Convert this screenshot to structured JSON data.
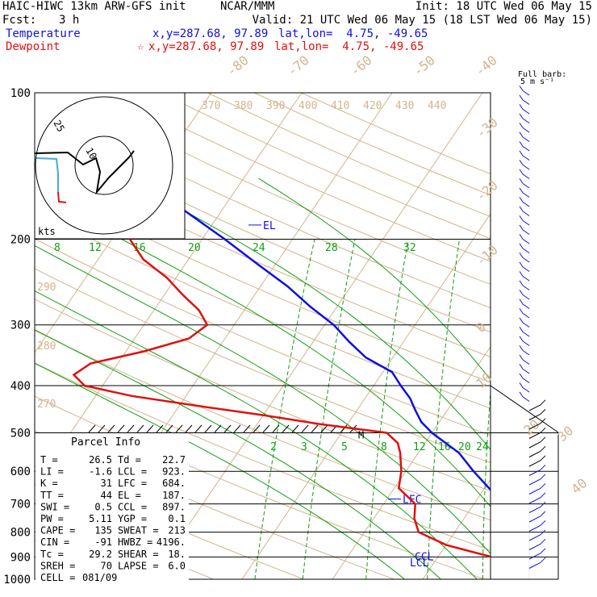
{
  "header": {
    "model": "HAIC-HIWC 13km ARW-GFS init",
    "org": "NCAR/MMM",
    "init": "Init: 18 UTC Wed 06 May 15",
    "fcst_label": "Fcst:",
    "fcst_value": "3 h",
    "valid": "Valid: 21 UTC Wed 06 May 15 (18 LST Wed 06 May 15)",
    "temp_label": "Temperature",
    "temp_xy": "x,y=287.68, 97.89",
    "temp_latlon": "lat,lon=  4.75, -49.65",
    "dew_label": "Dewpoint",
    "dew_star": "☆",
    "dew_xy": "x,y=287.68, 97.89",
    "dew_latlon": "lat,lon=  4.75, -49.65"
  },
  "barb_title": [
    "Full barb:",
    "5 m s⁻¹"
  ],
  "colors": {
    "temperature": "#1010e0",
    "dewpoint": "#e01010",
    "mixing_ratio": "#10a010",
    "dry_adiabat": "#d2b48c",
    "isotherm": "#d2b48c"
  },
  "chart_data": {
    "type": "line",
    "y_axis": "pressure (hPa), log scale",
    "ylim": [
      1000,
      100
    ],
    "xlim": [
      -40,
      40
    ],
    "pressure_ticks": [
      100,
      200,
      300,
      400,
      500,
      600,
      700,
      800,
      900,
      1000
    ],
    "isotherm_labels": [
      40,
      30,
      20,
      10,
      0,
      -10,
      -20,
      -30,
      -40,
      -50,
      -60,
      -70,
      -80
    ],
    "theta_labels_top": [
      370,
      380,
      390,
      400,
      410,
      420,
      430,
      440
    ],
    "theta_labels_left": [
      290,
      280,
      270
    ],
    "mixing_ratio_labels_upper": [
      8,
      12,
      16,
      20,
      24,
      28,
      32
    ],
    "mixing_ratio_labels_lower": [
      2,
      3,
      5,
      8,
      12,
      16,
      20,
      24
    ],
    "series": [
      {
        "name": "Temperature",
        "points": [
          [
            1000,
            26.5
          ],
          [
            975,
            23.5
          ],
          [
            950,
            21
          ],
          [
            925,
            20
          ],
          [
            900,
            20.5
          ],
          [
            875,
            21
          ],
          [
            850,
            20.5
          ],
          [
            800,
            18.5
          ],
          [
            750,
            16
          ],
          [
            700,
            13.5
          ],
          [
            650,
            10.5
          ],
          [
            600,
            7.5
          ],
          [
            550,
            4.5
          ],
          [
            500,
            0
          ],
          [
            475,
            -2
          ],
          [
            450,
            -3.5
          ],
          [
            425,
            -5
          ],
          [
            400,
            -7
          ],
          [
            375,
            -9
          ],
          [
            350,
            -13
          ],
          [
            325,
            -16
          ],
          [
            300,
            -19
          ],
          [
            275,
            -23
          ],
          [
            250,
            -27
          ],
          [
            225,
            -32
          ],
          [
            200,
            -37.5
          ],
          [
            175,
            -44
          ],
          [
            150,
            -51
          ],
          [
            125,
            -61
          ],
          [
            110,
            -70
          ],
          [
            100,
            -75
          ]
        ]
      },
      {
        "name": "Dewpoint",
        "points": [
          [
            1000,
            22.7
          ],
          [
            950,
            20
          ],
          [
            925,
            18.5
          ],
          [
            900,
            16
          ],
          [
            875,
            13
          ],
          [
            850,
            10
          ],
          [
            800,
            6
          ],
          [
            750,
            4.5
          ],
          [
            700,
            3.5
          ],
          [
            650,
            0.5
          ],
          [
            600,
            -0.5
          ],
          [
            550,
            -2
          ],
          [
            525,
            -3
          ],
          [
            500,
            -5
          ],
          [
            480,
            -13
          ],
          [
            460,
            -20
          ],
          [
            440,
            -28
          ],
          [
            420,
            -36
          ],
          [
            400,
            -42
          ],
          [
            380,
            -44
          ],
          [
            360,
            -43
          ],
          [
            340,
            -38
          ],
          [
            320,
            -34
          ],
          [
            300,
            -33
          ],
          [
            280,
            -35
          ],
          [
            260,
            -38
          ],
          [
            240,
            -41
          ],
          [
            220,
            -45
          ],
          [
            200,
            -48
          ],
          [
            175,
            -55
          ],
          [
            150,
            -61
          ],
          [
            125,
            -69
          ],
          [
            100,
            -78
          ]
        ]
      }
    ],
    "level_markers": [
      "EL",
      "LFC",
      "CCL",
      "LCL",
      "M"
    ],
    "hodograph": {
      "ring_labels": [
        "25",
        "10"
      ],
      "unit_label": "kts"
    },
    "parcel_info": {
      "title": "Parcel Info",
      "rows": [
        [
          "T",
          "26.5",
          "Td",
          "22.7"
        ],
        [
          "LI",
          "-1.6",
          "LCL",
          "923."
        ],
        [
          "K",
          "31",
          "LFC",
          "684."
        ],
        [
          "TT",
          "44",
          "EL",
          "187."
        ],
        [
          "SWI",
          "0.5",
          "CCL",
          "897."
        ],
        [
          "PW",
          "5.11",
          "YGP",
          "0.1"
        ],
        [
          "CAPE",
          "135",
          "SWEAT",
          "213"
        ],
        [
          "CIN",
          "-91",
          "HWBZ",
          "4196."
        ],
        [
          "Tc",
          "29.2",
          "SHEAR",
          "18."
        ],
        [
          "SREH",
          "70",
          "LAPSE",
          "6.0"
        ],
        [
          "CELL",
          "081/09",
          "",
          ""
        ]
      ]
    }
  }
}
